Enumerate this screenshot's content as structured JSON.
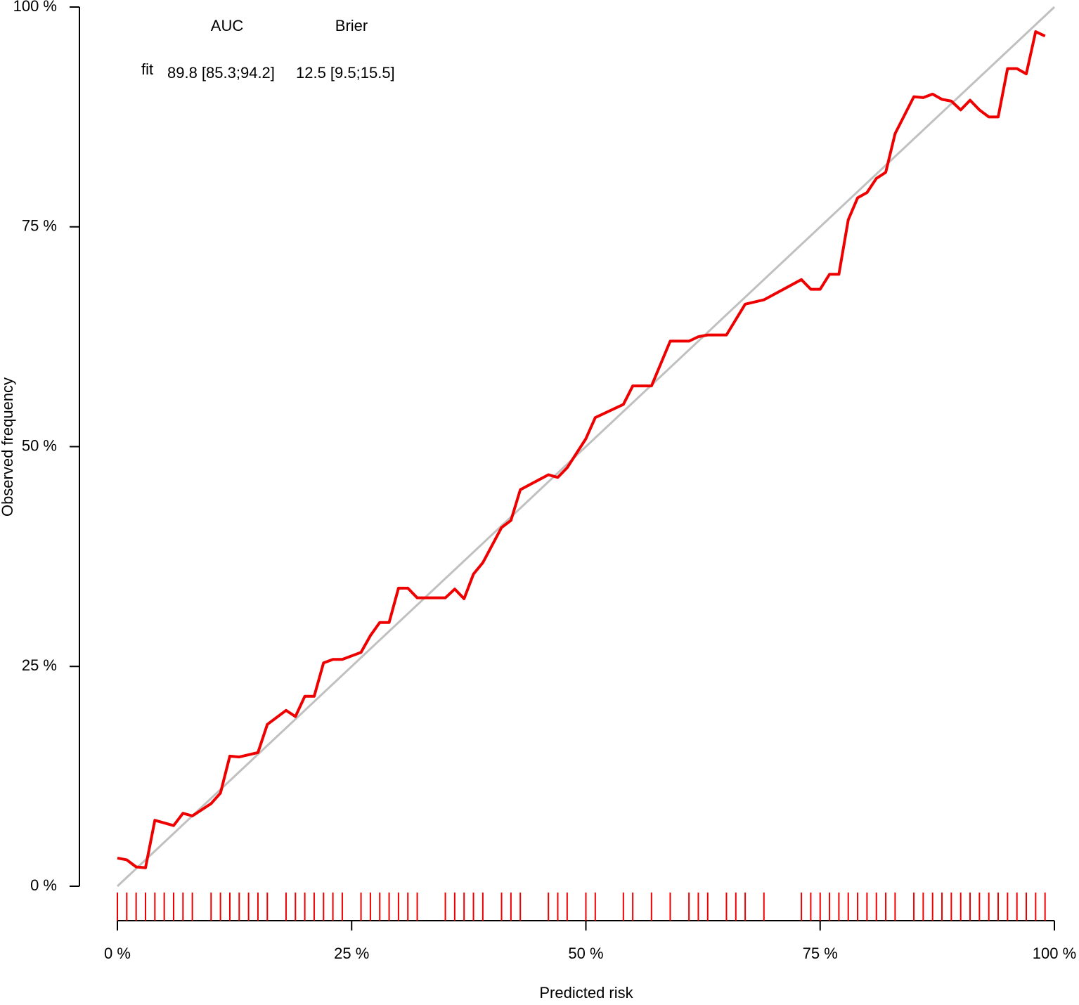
{
  "chart_data": {
    "type": "line",
    "xlabel": "Predicted risk",
    "ylabel": "Observed frequency",
    "xlim": [
      0,
      100
    ],
    "ylim": [
      0,
      100
    ],
    "xticks": [
      {
        "value": 0,
        "label": "0 %"
      },
      {
        "value": 25,
        "label": "25 %"
      },
      {
        "value": 50,
        "label": "50 %"
      },
      {
        "value": 75,
        "label": "75 %"
      },
      {
        "value": 100,
        "label": "100 %"
      }
    ],
    "yticks": [
      {
        "value": 0,
        "label": "0 %"
      },
      {
        "value": 25,
        "label": "25 %"
      },
      {
        "value": 50,
        "label": "50 %"
      },
      {
        "value": 75,
        "label": "75 %"
      },
      {
        "value": 100,
        "label": "100 %"
      }
    ],
    "reference_color": "#c0c0c0",
    "table": {
      "headers": [
        "AUC",
        "Brier"
      ],
      "row": [
        "89.8 [85.3;94.2]",
        "12.5 [9.5;15.5]"
      ]
    },
    "series": [
      {
        "name": "fit",
        "color": "#ee0000",
        "x": [
          0,
          1,
          2,
          3,
          4,
          6,
          7,
          8,
          10,
          11,
          12,
          13,
          15,
          16,
          18,
          19,
          20,
          21,
          22,
          23,
          24,
          26,
          27,
          28,
          29,
          30,
          31,
          32,
          35,
          36,
          37,
          38,
          39,
          41,
          42,
          43,
          46,
          47,
          48,
          50,
          51,
          54,
          55,
          57,
          59,
          61,
          62,
          63,
          65,
          67,
          69,
          73,
          74,
          75,
          76,
          77,
          78,
          79,
          80,
          81,
          82,
          83,
          85,
          86,
          87,
          88,
          89,
          90,
          91,
          92,
          93,
          94,
          95,
          96,
          97,
          98,
          99
        ],
        "values": [
          3.2,
          3.0,
          2.2,
          2.1,
          7.5,
          6.9,
          8.3,
          8.0,
          9.4,
          10.6,
          14.8,
          14.7,
          15.2,
          18.4,
          20.0,
          19.3,
          21.6,
          21.6,
          25.4,
          25.8,
          25.8,
          26.6,
          28.5,
          30.0,
          30.0,
          33.9,
          33.9,
          32.8,
          32.8,
          33.8,
          32.7,
          35.5,
          36.8,
          40.8,
          41.6,
          45.1,
          46.8,
          46.5,
          47.6,
          50.9,
          53.3,
          54.8,
          56.9,
          56.9,
          62.0,
          62.0,
          62.5,
          62.7,
          62.7,
          66.2,
          66.7,
          69.0,
          67.9,
          67.9,
          69.6,
          69.6,
          75.8,
          78.3,
          78.9,
          80.5,
          81.2,
          85.6,
          89.8,
          89.7,
          90.1,
          89.5,
          89.3,
          88.3,
          89.4,
          88.3,
          87.5,
          87.5,
          93.0,
          93.0,
          92.4,
          97.2,
          96.7
        ],
        "rug": [
          0,
          1,
          2,
          3,
          4,
          5,
          6,
          7,
          8,
          10,
          11,
          12,
          13,
          14,
          15,
          16,
          18,
          19,
          20,
          21,
          22,
          23,
          24,
          26,
          27,
          28,
          29,
          30,
          31,
          32,
          35,
          36,
          37,
          38,
          39,
          41,
          42,
          43,
          46,
          47,
          48,
          50,
          51,
          54,
          55,
          57,
          59,
          61,
          62,
          63,
          65,
          66,
          67,
          69,
          73,
          74,
          75,
          76,
          77,
          78,
          79,
          80,
          81,
          82,
          83,
          85,
          86,
          87,
          88,
          89,
          90,
          91,
          92,
          93,
          94,
          95,
          96,
          97,
          98,
          99
        ]
      }
    ]
  }
}
